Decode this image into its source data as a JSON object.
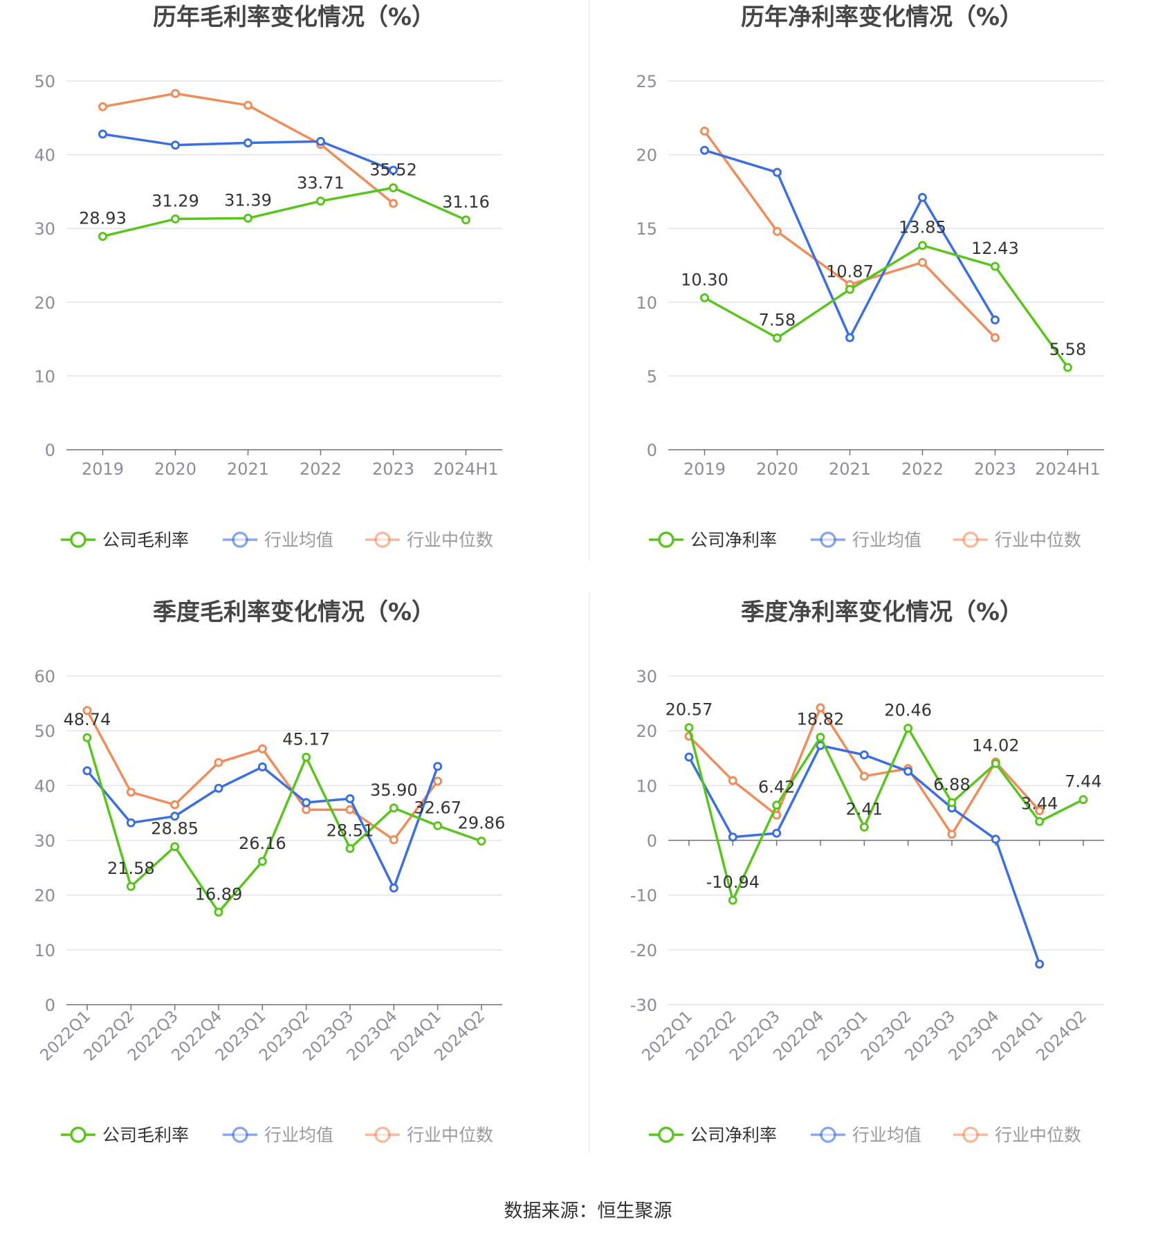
{
  "source_text": "数据来源：恒生聚源",
  "colors": {
    "company": "#5ac41e",
    "avg": "#3b6fe0",
    "median": "#f08c5a",
    "grid": "#dfe3ef",
    "axis": "#6e7079",
    "tick": "#8a8d99"
  },
  "chart_data": [
    {
      "type": "line",
      "title": "历年毛利率变化情况（%）",
      "categories": [
        "2019",
        "2020",
        "2021",
        "2022",
        "2023",
        "2024H1"
      ],
      "ylim": [
        0,
        50
      ],
      "yticks": [
        0,
        10,
        20,
        30,
        40,
        50
      ],
      "grid": true,
      "legend_position": "bottom",
      "series": [
        {
          "name": "公司毛利率",
          "color": "company",
          "values": [
            28.93,
            31.29,
            31.39,
            33.71,
            35.52,
            31.16
          ],
          "labels": [
            "28.93",
            "31.29",
            "31.39",
            "33.71",
            "35.52",
            "31.16"
          ]
        },
        {
          "name": "行业均值",
          "color": "avg",
          "values": [
            42.8,
            41.3,
            41.6,
            41.8,
            37.9,
            null
          ]
        },
        {
          "name": "行业中位数",
          "color": "median",
          "values": [
            46.5,
            48.3,
            46.7,
            41.4,
            33.4,
            null
          ]
        }
      ]
    },
    {
      "type": "line",
      "title": "历年净利率变化情况（%）",
      "categories": [
        "2019",
        "2020",
        "2021",
        "2022",
        "2023",
        "2024H1"
      ],
      "ylim": [
        0,
        25
      ],
      "yticks": [
        0,
        5,
        10,
        15,
        20,
        25
      ],
      "grid": true,
      "legend_position": "bottom",
      "series": [
        {
          "name": "公司净利率",
          "color": "company",
          "values": [
            10.3,
            7.58,
            10.87,
            13.85,
            12.43,
            5.58
          ],
          "labels": [
            "10.30",
            "7.58",
            "10.87",
            "13.85",
            "12.43",
            "5.58"
          ]
        },
        {
          "name": "行业均值",
          "color": "avg",
          "values": [
            20.3,
            18.8,
            7.6,
            17.1,
            8.8,
            null
          ]
        },
        {
          "name": "行业中位数",
          "color": "median",
          "values": [
            21.6,
            14.8,
            11.2,
            12.7,
            7.6,
            null
          ]
        }
      ]
    },
    {
      "type": "line",
      "title": "季度毛利率变化情况（%）",
      "categories": [
        "2022Q1",
        "2022Q2",
        "2022Q3",
        "2022Q4",
        "2023Q1",
        "2023Q2",
        "2023Q3",
        "2023Q4",
        "2024Q1",
        "2024Q2"
      ],
      "ylim": [
        0,
        60
      ],
      "yticks": [
        0,
        10,
        20,
        30,
        40,
        50,
        60
      ],
      "grid": true,
      "legend_position": "bottom",
      "series": [
        {
          "name": "公司毛利率",
          "color": "company",
          "values": [
            48.74,
            21.58,
            28.85,
            16.89,
            26.16,
            45.17,
            28.51,
            35.9,
            32.67,
            29.86
          ],
          "labels": [
            "48.74",
            "21.58",
            "28.85",
            "16.89",
            "26.16",
            "45.17",
            "28.51",
            "35.90",
            "32.67",
            "29.86"
          ]
        },
        {
          "name": "行业均值",
          "color": "avg",
          "values": [
            42.7,
            33.2,
            34.4,
            39.5,
            43.4,
            36.9,
            37.6,
            21.3,
            43.5,
            null
          ]
        },
        {
          "name": "行业中位数",
          "color": "median",
          "values": [
            53.7,
            38.8,
            36.5,
            44.2,
            46.7,
            35.6,
            35.6,
            30.1,
            40.8,
            null
          ]
        }
      ]
    },
    {
      "type": "line",
      "title": "季度净利率变化情况（%）",
      "categories": [
        "2022Q1",
        "2022Q2",
        "2022Q3",
        "2022Q4",
        "2023Q1",
        "2023Q2",
        "2023Q3",
        "2023Q4",
        "2024Q1",
        "2024Q2"
      ],
      "ylim": [
        -30,
        30
      ],
      "yticks": [
        -30,
        -20,
        -10,
        0,
        10,
        20,
        30
      ],
      "grid": true,
      "legend_position": "bottom",
      "series": [
        {
          "name": "公司净利率",
          "color": "company",
          "values": [
            20.57,
            -10.94,
            6.42,
            18.82,
            2.41,
            20.46,
            6.88,
            14.02,
            3.44,
            7.44
          ],
          "labels": [
            "20.57",
            "-10.94",
            "6.42",
            "18.82",
            "2.41",
            "20.46",
            "6.88",
            "14.02",
            "3.44",
            "7.44"
          ]
        },
        {
          "name": "行业均值",
          "color": "avg",
          "values": [
            15.2,
            0.6,
            1.3,
            17.3,
            15.6,
            12.6,
            5.9,
            0.2,
            -22.6,
            null
          ]
        },
        {
          "name": "行业中位数",
          "color": "median",
          "values": [
            19.0,
            10.9,
            4.6,
            24.2,
            11.7,
            13.1,
            1.1,
            14.3,
            5.4,
            null
          ]
        }
      ]
    }
  ]
}
